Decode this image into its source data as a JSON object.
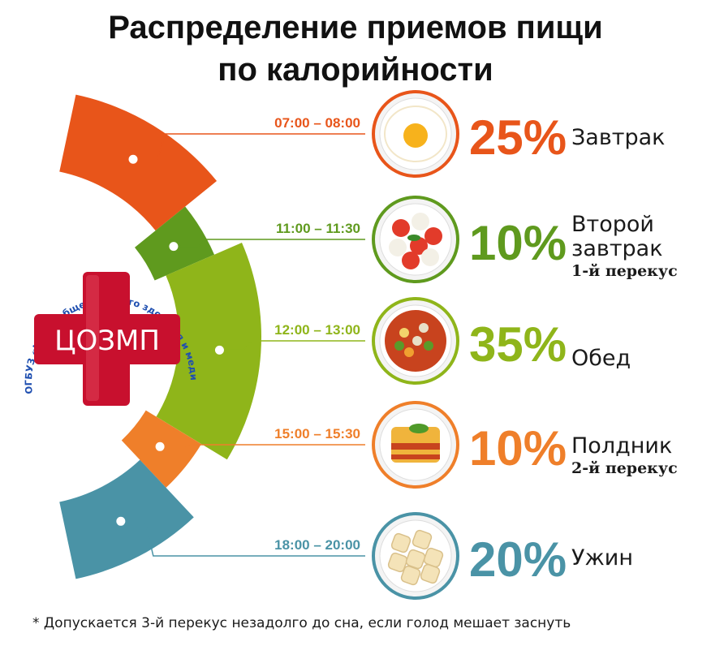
{
  "title_line1": "Распределение приемов пищи",
  "title_line2": "по калорийности",
  "logo": {
    "text": "ЦОЗМП",
    "ring_text": "ОГБУЗ «Центр общественного здоровья и медицинской профилактики Костромской области»",
    "color": "#c8102e",
    "ring_color": "#1f4fb0"
  },
  "chart_data": {
    "type": "pie",
    "title": "Распределение приемов пищи по калорийности",
    "unit": "%",
    "slices": [
      {
        "time": "07:00 – 08:00",
        "label": "25%",
        "value": 25,
        "name": "Завтрак",
        "sub": "",
        "color": "#e8551a",
        "food": "fried-egg"
      },
      {
        "time": "11:00 – 11:30",
        "label": "10%",
        "value": 10,
        "name": "Второй завтрак",
        "sub": "1-й перекус",
        "color": "#5f9a1e",
        "food": "caprese-salad"
      },
      {
        "time": "12:00 – 13:00",
        "label": "35%",
        "value": 35,
        "name": "Обед",
        "sub": "",
        "color": "#8fb51a",
        "food": "vegetable-soup"
      },
      {
        "time": "15:00 – 15:30",
        "label": "10%",
        "value": 10,
        "name": "Полдник",
        "sub": "2-й перекус",
        "color": "#ef7f2a",
        "food": "lasagna"
      },
      {
        "time": "18:00 – 20:00",
        "label": "20%",
        "value": 20,
        "name": "Ужин",
        "sub": "",
        "color": "#4a93a6",
        "food": "ravioli"
      }
    ]
  },
  "footnote": "* Допускается 3-й перекус незадолго до сна, если голод мешает заснуть"
}
